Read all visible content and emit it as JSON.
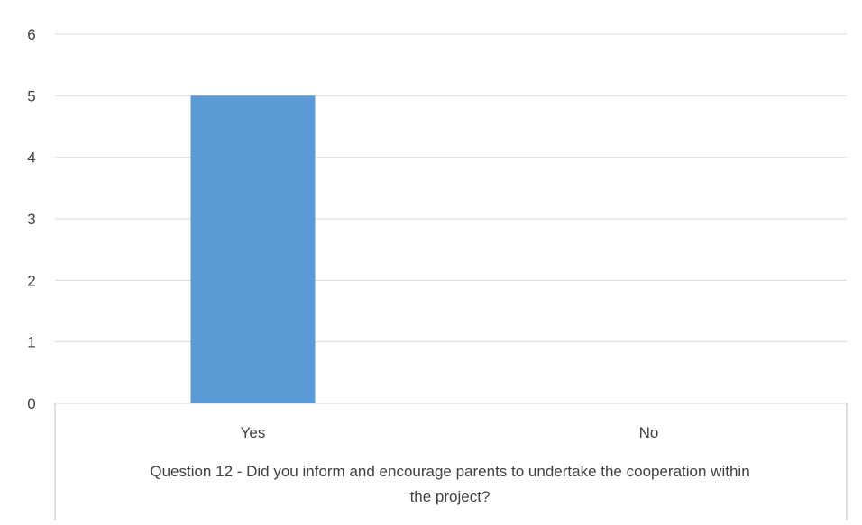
{
  "chart_data": {
    "type": "bar",
    "categories": [
      "Yes",
      "No"
    ],
    "values": [
      5,
      0
    ],
    "ylim": [
      0,
      6
    ],
    "y_ticks": [
      0,
      1,
      2,
      3,
      4,
      5,
      6
    ],
    "grid": true,
    "category_axis_title": "Question 12 - Did you inform and encourage parents to undertake the cooperation within the project?",
    "colors": {
      "bar": "#5B9BD5",
      "grid": "#D9D9D9",
      "axis_border": "#BFBFBF",
      "text": "#404040"
    }
  }
}
